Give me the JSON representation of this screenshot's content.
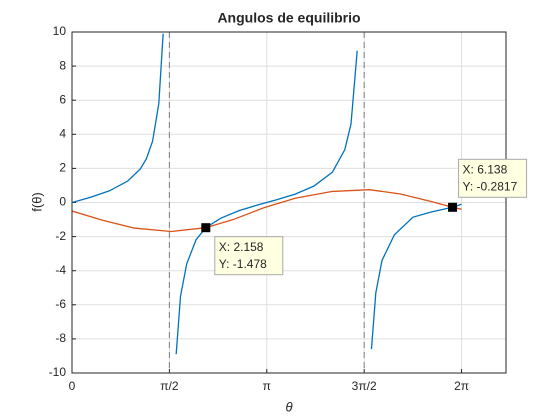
{
  "chart_data": {
    "type": "line",
    "title": "Angulos de equilibrio",
    "xlabel": "θ",
    "ylabel": "f(θ)",
    "xlim": [
      0,
      7
    ],
    "ylim": [
      -10,
      10
    ],
    "xticks": [
      0,
      {
        "value": 1.5708,
        "label": "π/2"
      },
      {
        "value": 3.1416,
        "label": "π"
      },
      {
        "value": 4.7124,
        "label": "3π/2"
      },
      {
        "value": 6.2832,
        "label": "2π"
      }
    ],
    "yticks": [
      -10,
      -8,
      -6,
      -4,
      -2,
      0,
      2,
      4,
      6,
      8,
      10
    ],
    "grid": true,
    "vlines": [
      1.5708,
      4.7124
    ],
    "series": [
      {
        "color": "#0072bd",
        "x": [
          0,
          0.3,
          0.6,
          0.9,
          1.1,
          1.2,
          1.3,
          1.4,
          1.47,
          null,
          1.68,
          1.75,
          1.85,
          2.0,
          2.158,
          2.4,
          2.7,
          3.0,
          3.3,
          3.6,
          3.9,
          4.2,
          4.4,
          4.5,
          4.6,
          null,
          4.83,
          4.9,
          5.0,
          5.2,
          5.5,
          5.8,
          6.138,
          6.283
        ],
        "values": [
          0,
          0.31,
          0.68,
          1.26,
          1.96,
          2.57,
          3.6,
          5.8,
          9.9,
          null,
          -8.9,
          -5.5,
          -3.6,
          -2.19,
          -1.478,
          -0.92,
          -0.47,
          -0.14,
          0.16,
          0.49,
          0.96,
          1.78,
          3.1,
          4.6,
          8.9,
          null,
          -8.6,
          -5.3,
          -3.4,
          -1.89,
          -0.86,
          -0.55,
          -0.2817,
          -0.1
        ]
      },
      {
        "color": "#d95319",
        "x": [
          0,
          0.5,
          1.0,
          1.6,
          2.158,
          2.6,
          3.1,
          3.6,
          4.2,
          4.8,
          5.3,
          5.8,
          6.138,
          6.283
        ],
        "values": [
          -0.5,
          -1.05,
          -1.5,
          -1.7,
          -1.478,
          -1.0,
          -0.3,
          0.25,
          0.65,
          0.75,
          0.5,
          0.05,
          -0.2817,
          -0.4
        ]
      }
    ],
    "datatips": [
      {
        "x": 2.158,
        "y": -1.478,
        "labels": [
          "X: 2.158",
          "Y: -1.478"
        ]
      },
      {
        "x": 6.138,
        "y": -0.2817,
        "labels": [
          "X: 6.138",
          "Y: -0.2817"
        ]
      }
    ]
  }
}
